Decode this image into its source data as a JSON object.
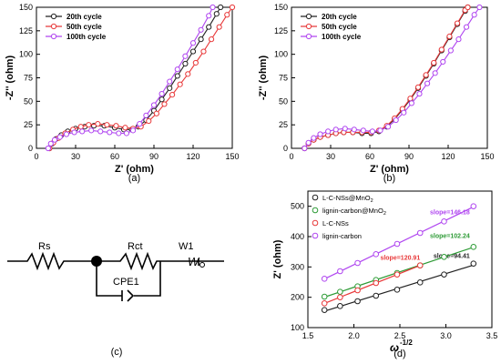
{
  "panels": {
    "a": {
      "caption": "(a)"
    },
    "b": {
      "caption": "(b)"
    },
    "c": {
      "caption": "(c)"
    },
    "d": {
      "caption": "(d)"
    }
  },
  "circuit": {
    "labels": {
      "rs": "Rs",
      "rct": "Rct",
      "w1": "W1",
      "cpe": "CPE1"
    }
  },
  "colors": {
    "black": "#222222",
    "red": "#e8393a",
    "violet": "#b046f0",
    "green": "#2e9b36",
    "axis": "#000000"
  },
  "chart_data": [
    {
      "id": "a",
      "type": "line",
      "xlabel": "Z' (ohm)",
      "ylabel": "-Z'' (ohm)",
      "xlim": [
        0,
        150
      ],
      "ylim": [
        0,
        150
      ],
      "xticks": [
        0,
        30,
        60,
        90,
        120,
        150
      ],
      "yticks": [
        0,
        25,
        50,
        75,
        100,
        125,
        150
      ],
      "legend_position": "top-left",
      "series": [
        {
          "name": "20th cycle",
          "color": "#222222",
          "points": [
            [
              10,
              0
            ],
            [
              12,
              5
            ],
            [
              15,
              10
            ],
            [
              19,
              14
            ],
            [
              24,
              18
            ],
            [
              30,
              21
            ],
            [
              37,
              23
            ],
            [
              44,
              24
            ],
            [
              52,
              24
            ],
            [
              60,
              22
            ],
            [
              67,
              20
            ],
            [
              73,
              20
            ],
            [
              78,
              23
            ],
            [
              84,
              30
            ],
            [
              90,
              40
            ],
            [
              96,
              52
            ],
            [
              102,
              64
            ],
            [
              108,
              77
            ],
            [
              114,
              90
            ],
            [
              120,
              103
            ],
            [
              126,
              116
            ],
            [
              132,
              129
            ],
            [
              138,
              143
            ],
            [
              141,
              150
            ]
          ]
        },
        {
          "name": "50th cycle",
          "color": "#e8393a",
          "points": [
            [
              10,
              0
            ],
            [
              13,
              6
            ],
            [
              17,
              11
            ],
            [
              22,
              16
            ],
            [
              28,
              20
            ],
            [
              34,
              23
            ],
            [
              40,
              25
            ],
            [
              47,
              26
            ],
            [
              54,
              25
            ],
            [
              61,
              24
            ],
            [
              68,
              22
            ],
            [
              74,
              21
            ],
            [
              80,
              23
            ],
            [
              86,
              29
            ],
            [
              92,
              37
            ],
            [
              98,
              47
            ],
            [
              104,
              57
            ],
            [
              110,
              68
            ],
            [
              116,
              79
            ],
            [
              122,
              91
            ],
            [
              128,
              103
            ],
            [
              134,
              116
            ],
            [
              140,
              129
            ],
            [
              146,
              142
            ],
            [
              150,
              150
            ]
          ]
        },
        {
          "name": "100th cycle",
          "color": "#b046f0",
          "points": [
            [
              9,
              0
            ],
            [
              11,
              5
            ],
            [
              14,
              9
            ],
            [
              18,
              12
            ],
            [
              23,
              15
            ],
            [
              29,
              17
            ],
            [
              35,
              18
            ],
            [
              42,
              19
            ],
            [
              49,
              18
            ],
            [
              56,
              17
            ],
            [
              63,
              16
            ],
            [
              69,
              16
            ],
            [
              74,
              19
            ],
            [
              79,
              26
            ],
            [
              84,
              35
            ],
            [
              90,
              46
            ],
            [
              96,
              58
            ],
            [
              102,
              71
            ],
            [
              108,
              84
            ],
            [
              114,
              98
            ],
            [
              120,
              112
            ],
            [
              126,
              126
            ],
            [
              132,
              141
            ],
            [
              135,
              150
            ]
          ]
        }
      ]
    },
    {
      "id": "b",
      "type": "line",
      "xlabel": "Z' (ohm)",
      "ylabel": "-Z'' (ohm)",
      "xlim": [
        0,
        150
      ],
      "ylim": [
        0,
        150
      ],
      "xticks": [
        0,
        30,
        60,
        90,
        120,
        150
      ],
      "yticks": [
        0,
        25,
        50,
        75,
        100,
        125,
        150
      ],
      "legend_position": "top-left",
      "series": [
        {
          "name": "20th cycle",
          "color": "#222222",
          "points": [
            [
              10,
              0
            ],
            [
              13,
              5
            ],
            [
              17,
              9
            ],
            [
              22,
              12
            ],
            [
              28,
              14
            ],
            [
              34,
              16
            ],
            [
              40,
              17
            ],
            [
              47,
              17
            ],
            [
              54,
              16
            ],
            [
              61,
              16
            ],
            [
              67,
              18
            ],
            [
              73,
              23
            ],
            [
              79,
              31
            ],
            [
              85,
              41
            ],
            [
              91,
              52
            ],
            [
              97,
              64
            ],
            [
              103,
              77
            ],
            [
              109,
              90
            ],
            [
              115,
              104
            ],
            [
              121,
              118
            ],
            [
              127,
              132
            ],
            [
              133,
              146
            ],
            [
              135,
              150
            ]
          ]
        },
        {
          "name": "50th cycle",
          "color": "#e8393a",
          "points": [
            [
              10,
              0
            ],
            [
              13,
              5
            ],
            [
              17,
              9
            ],
            [
              22,
              12
            ],
            [
              28,
              14
            ],
            [
              34,
              16
            ],
            [
              40,
              17
            ],
            [
              47,
              17
            ],
            [
              54,
              17
            ],
            [
              61,
              17
            ],
            [
              67,
              19
            ],
            [
              73,
              24
            ],
            [
              79,
              32
            ],
            [
              85,
              42
            ],
            [
              91,
              53
            ],
            [
              97,
              65
            ],
            [
              103,
              78
            ],
            [
              109,
              91
            ],
            [
              115,
              105
            ],
            [
              121,
              119
            ],
            [
              127,
              133
            ],
            [
              133,
              147
            ],
            [
              135,
              150
            ]
          ]
        },
        {
          "name": "100th cycle",
          "color": "#b046f0",
          "points": [
            [
              10,
              0
            ],
            [
              13,
              6
            ],
            [
              17,
              11
            ],
            [
              22,
              15
            ],
            [
              28,
              18
            ],
            [
              34,
              20
            ],
            [
              41,
              21
            ],
            [
              48,
              20
            ],
            [
              55,
              19
            ],
            [
              62,
              18
            ],
            [
              68,
              19
            ],
            [
              74,
              23
            ],
            [
              80,
              30
            ],
            [
              86,
              38
            ],
            [
              92,
              48
            ],
            [
              98,
              58
            ],
            [
              104,
              69
            ],
            [
              110,
              80
            ],
            [
              116,
              92
            ],
            [
              122,
              104
            ],
            [
              128,
              116
            ],
            [
              134,
              129
            ],
            [
              140,
              142
            ],
            [
              144,
              150
            ]
          ]
        }
      ]
    },
    {
      "id": "d",
      "type": "scatter",
      "xlabel": "ω",
      "xlabel_sup": "-1/2",
      "ylabel": "Z' (ohm)",
      "xlim": [
        1.5,
        3.5
      ],
      "ylim": [
        100,
        550
      ],
      "xticks": [
        1.5,
        2.0,
        2.5,
        3.0,
        3.5
      ],
      "yticks": [
        100,
        200,
        300,
        400,
        500
      ],
      "legend_position": "top-left",
      "series": [
        {
          "name": "L-C-NSs@MnO",
          "sub": "2",
          "color": "#222222",
          "slope_label": "slope=94.41",
          "x": [
            1.68,
            1.85,
            2.04,
            2.24,
            2.47,
            2.72,
            2.98,
            3.3
          ],
          "y": [
            158,
            171,
            187,
            205,
            225,
            249,
            275,
            311
          ]
        },
        {
          "name": "lignin-carbon@MnO",
          "sub": "2",
          "color": "#2e9b36",
          "slope_label": "slope=102.24",
          "x": [
            1.68,
            1.85,
            2.04,
            2.24,
            2.47,
            2.72,
            2.98,
            3.3
          ],
          "y": [
            202,
            218,
            236,
            257,
            280,
            305,
            333,
            366
          ]
        },
        {
          "name": "L-C-NSs",
          "sub": "",
          "color": "#e8393a",
          "slope_label": "slope=120.91",
          "x": [
            1.68,
            1.85,
            2.04,
            2.24,
            2.47,
            2.72
          ],
          "y": [
            180,
            200,
            223,
            247,
            275,
            305
          ]
        },
        {
          "name": "lignin-carbon",
          "sub": "",
          "color": "#b046f0",
          "slope_label": "slope=146.18",
          "x": [
            1.68,
            1.85,
            2.04,
            2.24,
            2.47,
            2.72,
            2.98,
            3.3
          ],
          "y": [
            261,
            286,
            313,
            342,
            376,
            412,
            450,
            500
          ]
        }
      ]
    }
  ]
}
